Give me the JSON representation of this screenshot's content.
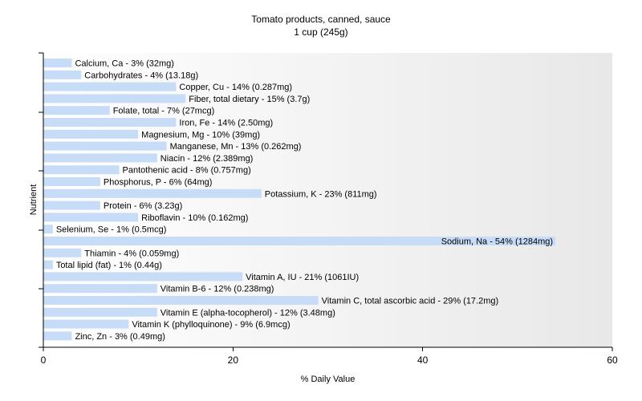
{
  "chart_data": {
    "type": "bar",
    "orientation": "horizontal",
    "title": "Tomato products, canned, sauce",
    "subtitle": "1 cup (245g)",
    "xlabel": "% Daily Value",
    "ylabel": "Nutrient",
    "xlim": [
      0,
      60
    ],
    "xticks": [
      0,
      20,
      40,
      60
    ],
    "grid": false,
    "legend": "none",
    "bar_color": "#c6dcf7",
    "categories": [
      "Calcium, Ca - 3% (32mg)",
      "Carbohydrates - 4% (13.18g)",
      "Copper, Cu - 14% (0.287mg)",
      "Fiber, total dietary - 15% (3.7g)",
      "Folate, total - 7% (27mcg)",
      "Iron, Fe - 14% (2.50mg)",
      "Magnesium, Mg - 10% (39mg)",
      "Manganese, Mn - 13% (0.262mg)",
      "Niacin - 12% (2.389mg)",
      "Pantothenic acid - 8% (0.757mg)",
      "Phosphorus, P - 6% (64mg)",
      "Potassium, K - 23% (811mg)",
      "Protein - 6% (3.23g)",
      "Riboflavin - 10% (0.162mg)",
      "Selenium, Se - 1% (0.5mcg)",
      "Sodium, Na - 54% (1284mg)",
      "Thiamin - 4% (0.059mg)",
      "Total lipid (fat) - 1% (0.44g)",
      "Vitamin A, IU - 21% (1061IU)",
      "Vitamin B-6 - 12% (0.238mg)",
      "Vitamin C, total ascorbic acid - 29% (17.2mg)",
      "Vitamin E (alpha-tocopherol) - 12% (3.48mg)",
      "Vitamin K (phylloquinone) - 9% (6.9mcg)",
      "Zinc, Zn - 3% (0.49mg)"
    ],
    "values": [
      3,
      4,
      14,
      15,
      7,
      14,
      10,
      13,
      12,
      8,
      6,
      23,
      6,
      10,
      1,
      54,
      4,
      1,
      21,
      12,
      29,
      12,
      9,
      3
    ]
  }
}
